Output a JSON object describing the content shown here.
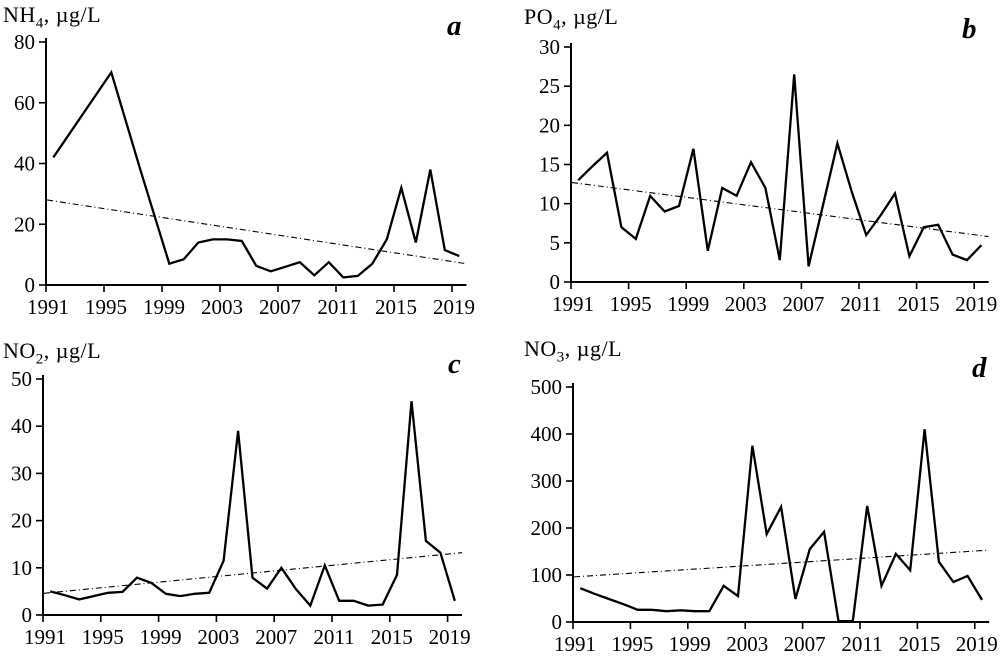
{
  "panels": [
    {
      "id": "a",
      "letter": "a",
      "title": {
        "formula": "NH",
        "subscript": "4",
        "unit": ", µg/L"
      }
    },
    {
      "id": "b",
      "letter": "b",
      "title": {
        "formula": "PO",
        "subscript": "4",
        "unit": ", µg/L"
      }
    },
    {
      "id": "c",
      "letter": "c",
      "title": {
        "formula": "NO",
        "subscript": "2",
        "unit": ", µg/L"
      }
    },
    {
      "id": "d",
      "letter": "d",
      "title": {
        "formula": "NO",
        "subscript": "3",
        "unit": ", µg/L"
      }
    }
  ],
  "chart_data": [
    {
      "type": "line",
      "title": "NH4, µg/L",
      "panel_letter": "a",
      "x": [
        1991,
        1992,
        1993,
        1994,
        1995,
        1996,
        1997,
        1998,
        1999,
        2000,
        2001,
        2002,
        2003,
        2004,
        2005,
        2006,
        2007,
        2008,
        2009,
        2010,
        2011,
        2012,
        2013,
        2014,
        2015,
        2016,
        2017,
        2018,
        2019
      ],
      "values": [
        42,
        49,
        56,
        63,
        70,
        54,
        38,
        22.5,
        7,
        8.5,
        14,
        15,
        15,
        14.5,
        6.3,
        4.5,
        6,
        7.5,
        3.2,
        7.5,
        2.5,
        3,
        7,
        15,
        32,
        14,
        38,
        11.5,
        9.5
      ],
      "trend": {
        "type": "linear-dashed",
        "start": 28,
        "end": 7
      },
      "ylim": [
        0,
        80
      ],
      "yticks": [
        0,
        20,
        40,
        60,
        80
      ],
      "xticks": [
        1991,
        1995,
        1999,
        2003,
        2007,
        2011,
        2015,
        2019
      ],
      "grid": false,
      "legend": "none",
      "line_color": "#000000"
    },
    {
      "type": "line",
      "title": "PO4, µg/L",
      "panel_letter": "b",
      "x": [
        1991,
        1992,
        1993,
        1994,
        1995,
        1996,
        1997,
        1998,
        1999,
        2000,
        2001,
        2002,
        2003,
        2004,
        2005,
        2006,
        2007,
        2008,
        2009,
        2010,
        2011,
        2012,
        2013,
        2014,
        2015,
        2016,
        2017,
        2018,
        2019
      ],
      "values": [
        13,
        14.8,
        16.5,
        7,
        5.5,
        11,
        9,
        9.7,
        17,
        4,
        12,
        11,
        15.3,
        12,
        2.8,
        26.5,
        2,
        9.8,
        17.7,
        11.5,
        6,
        8.5,
        11.3,
        3.3,
        7,
        7.3,
        3.5,
        2.8,
        4.7
      ],
      "trend": {
        "type": "linear-dashed",
        "start": 12.7,
        "end": 5.8
      },
      "ylim": [
        0,
        30
      ],
      "yticks": [
        0,
        5,
        10,
        15,
        20,
        25,
        30
      ],
      "xticks": [
        1991,
        1995,
        1999,
        2003,
        2007,
        2011,
        2015,
        2019
      ],
      "grid": false,
      "legend": "none",
      "line_color": "#000000"
    },
    {
      "type": "line",
      "title": "NO2, µg/L",
      "panel_letter": "c",
      "x": [
        1991,
        1992,
        1993,
        1994,
        1995,
        1996,
        1997,
        1998,
        1999,
        2000,
        2001,
        2002,
        2003,
        2004,
        2005,
        2006,
        2007,
        2008,
        2009,
        2010,
        2011,
        2012,
        2013,
        2014,
        2015,
        2016,
        2017,
        2018,
        2019
      ],
      "values": [
        5,
        4.2,
        3.3,
        4,
        4.7,
        4.9,
        7.9,
        6.8,
        4.5,
        4,
        4.5,
        4.7,
        11.5,
        39,
        7.9,
        5.6,
        10,
        5.5,
        2,
        10.5,
        3,
        3,
        2,
        2.2,
        8.5,
        45.3,
        15.7,
        13.2,
        3
      ],
      "trend": {
        "type": "linear-dashed",
        "start": 4.6,
        "end": 13.2
      },
      "ylim": [
        0,
        50
      ],
      "yticks": [
        0,
        10,
        20,
        30,
        40,
        50
      ],
      "xticks": [
        1991,
        1995,
        1999,
        2003,
        2007,
        2011,
        2015,
        2019
      ],
      "grid": false,
      "legend": "none",
      "line_color": "#000000"
    },
    {
      "type": "line",
      "title": "NO3, µg/L",
      "panel_letter": "d",
      "x": [
        1991,
        1992,
        1993,
        1994,
        1995,
        1996,
        1997,
        1998,
        1999,
        2000,
        2001,
        2002,
        2003,
        2004,
        2005,
        2006,
        2007,
        2008,
        2009,
        2010,
        2011,
        2012,
        2013,
        2014,
        2015,
        2016,
        2017,
        2018,
        2019
      ],
      "values": [
        72,
        60,
        49,
        38,
        26,
        26,
        23,
        25,
        23,
        23,
        77,
        55,
        375,
        187,
        245,
        49,
        155,
        192,
        2,
        2,
        247,
        77,
        145,
        110,
        410,
        128,
        85,
        98,
        47
      ],
      "trend": {
        "type": "linear-dashed",
        "start": 96,
        "end": 153
      },
      "ylim": [
        0,
        500
      ],
      "yticks": [
        0,
        100,
        200,
        300,
        400,
        500
      ],
      "xticks": [
        1991,
        1995,
        1999,
        2003,
        2007,
        2011,
        2015,
        2019
      ],
      "grid": false,
      "legend": "none",
      "line_color": "#000000"
    }
  ]
}
